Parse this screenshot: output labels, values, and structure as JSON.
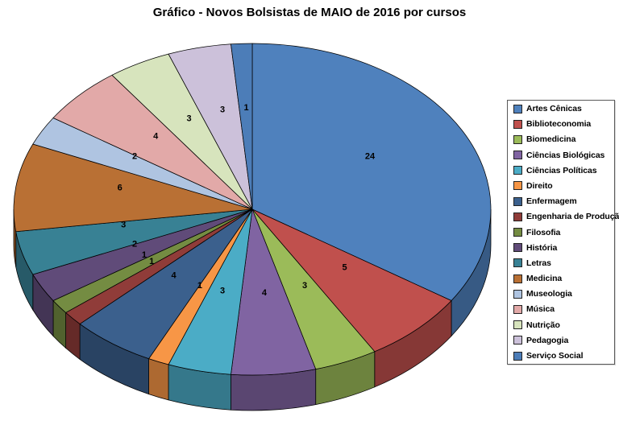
{
  "page": {
    "background": "#FFFFFF"
  },
  "chart_data": {
    "type": "pie",
    "effect": "3d",
    "title": "Gráfico - Novos Bolsistas de MAIO de 2016 por cursos",
    "data_labels": "value",
    "legend_position": "right",
    "start_angle_deg": 0,
    "direction": "clockwise",
    "total": 70,
    "slices": [
      {
        "label": "Artes Cênicas",
        "value": 24,
        "color": "#4F81BD"
      },
      {
        "label": "Biblioteconomia",
        "value": 5,
        "color": "#C0504D"
      },
      {
        "label": "Biomedicina",
        "value": 3,
        "color": "#9BBB59"
      },
      {
        "label": "Ciências Biológicas",
        "value": 4,
        "color": "#8064A2"
      },
      {
        "label": "Ciências Políticas",
        "value": 3,
        "color": "#4BACC6"
      },
      {
        "label": "Direito",
        "value": 1,
        "color": "#F79646"
      },
      {
        "label": "Enfermagem",
        "value": 4,
        "color": "#3B608D"
      },
      {
        "label": "Engenharia de Produção",
        "value": 1,
        "color": "#903C39"
      },
      {
        "label": "Filosofia",
        "value": 1,
        "color": "#748C42"
      },
      {
        "label": "História",
        "value": 2,
        "color": "#604B79"
      },
      {
        "label": "Letras",
        "value": 3,
        "color": "#388194"
      },
      {
        "label": "Medicina",
        "value": 6,
        "color": "#B97034"
      },
      {
        "label": "Museologia",
        "value": 2,
        "color": "#AFC4E1"
      },
      {
        "label": "Música",
        "value": 4,
        "color": "#E2A9A8"
      },
      {
        "label": "Nutrição",
        "value": 3,
        "color": "#D7E4BD"
      },
      {
        "label": "Pedagogia",
        "value": 3,
        "color": "#CCC1DA"
      },
      {
        "label": "Serviço Social",
        "value": 1,
        "color": "#4C7DB8"
      }
    ]
  }
}
